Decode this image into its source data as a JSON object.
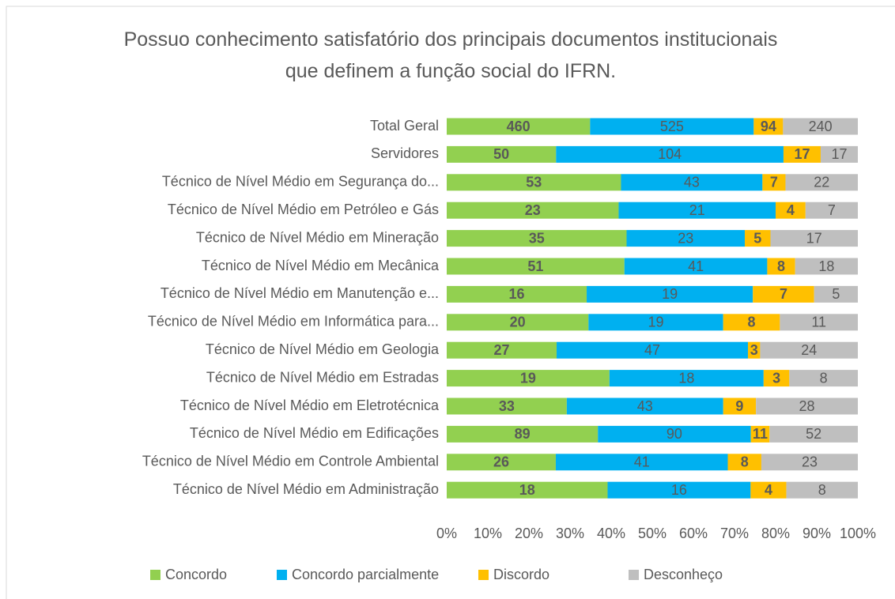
{
  "chart_data": {
    "type": "stacked_bar_100",
    "orientation": "horizontal",
    "title": "Possuo conhecimento satisfatório dos principais documentos institucionais que definem a função social do IFRN.",
    "categories": [
      "Total Geral",
      "Servidores",
      "Técnico de Nível Médio em Segurança do...",
      "Técnico de Nível Médio em Petróleo e Gás",
      "Técnico de Nível Médio em Mineração",
      "Técnico de Nível Médio em Mecânica",
      "Técnico de Nível Médio em Manutenção e...",
      "Técnico de Nível Médio em Informática para...",
      "Técnico de Nível Médio em Geologia",
      "Técnico de Nível Médio em Estradas",
      "Técnico de Nível Médio em Eletrotécnica",
      "Técnico de Nível Médio em Edificações",
      "Técnico de Nível Médio em Controle Ambiental",
      "Técnico de Nível Médio em Administração"
    ],
    "series": [
      {
        "name": "Concordo",
        "color": "#92d050",
        "values": [
          460,
          50,
          53,
          23,
          35,
          51,
          16,
          20,
          27,
          19,
          33,
          89,
          26,
          18
        ]
      },
      {
        "name": "Concordo parcialmente",
        "color": "#00b0f0",
        "values": [
          525,
          104,
          43,
          21,
          23,
          41,
          19,
          19,
          47,
          18,
          43,
          90,
          41,
          16
        ]
      },
      {
        "name": "Discordo",
        "color": "#ffc000",
        "values": [
          94,
          17,
          7,
          4,
          5,
          8,
          7,
          8,
          3,
          3,
          9,
          11,
          8,
          4
        ]
      },
      {
        "name": "Desconheço",
        "color": "#bfbfbf",
        "values": [
          240,
          17,
          22,
          7,
          17,
          18,
          5,
          11,
          24,
          8,
          28,
          52,
          23,
          8
        ]
      }
    ],
    "xlim": [
      0,
      100
    ],
    "xticks": [
      {
        "value": 0,
        "label": "0%"
      },
      {
        "value": 10,
        "label": "10%"
      },
      {
        "value": 20,
        "label": "20%"
      },
      {
        "value": 30,
        "label": "30%"
      },
      {
        "value": 40,
        "label": "40%"
      },
      {
        "value": 50,
        "label": "50%"
      },
      {
        "value": 60,
        "label": "60%"
      },
      {
        "value": 70,
        "label": "70%"
      },
      {
        "value": 80,
        "label": "80%"
      },
      {
        "value": 90,
        "label": "90%"
      },
      {
        "value": 100,
        "label": "100%"
      }
    ],
    "legend": "bottom"
  }
}
